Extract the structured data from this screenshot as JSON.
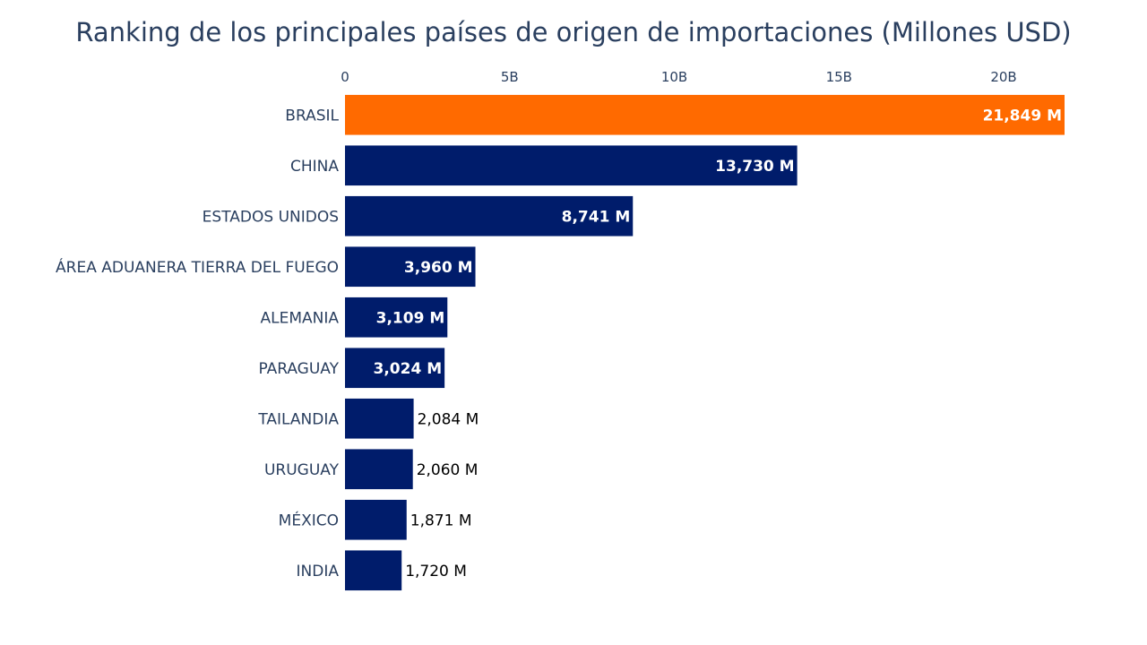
{
  "chart_data": {
    "type": "bar",
    "orientation": "horizontal",
    "title": "Ranking de los principales países de origen de importaciones (Millones USD)",
    "xlabel": "",
    "ylabel": "",
    "x_axis_position": "top",
    "xlim": [
      0,
      21849
    ],
    "x_ticks": [
      0,
      5000,
      10000,
      15000,
      20000
    ],
    "x_tick_labels": [
      "0",
      "5B",
      "10B",
      "15B",
      "20B"
    ],
    "grid": false,
    "categories": [
      "BRASIL",
      "CHINA",
      "ESTADOS UNIDOS",
      "ÁREA ADUANERA TIERRA DEL FUEGO",
      "ALEMANIA",
      "PARAGUAY",
      "TAILANDIA",
      "URUGUAY",
      "MÉXICO",
      "INDIA"
    ],
    "values": [
      21849,
      13730,
      8741,
      3960,
      3109,
      3024,
      2084,
      2060,
      1871,
      1720
    ],
    "data_labels": [
      "21,849 M",
      "13,730 M",
      "8,741 M",
      "3,960 M",
      "3,109 M",
      "3,024 M",
      "2,084 M",
      "2,060 M",
      "1,871 M",
      "1,720 M"
    ],
    "colors": {
      "highlight": "#ff6a00",
      "default": "#001c6b"
    },
    "highlight_category": "BRASIL"
  }
}
